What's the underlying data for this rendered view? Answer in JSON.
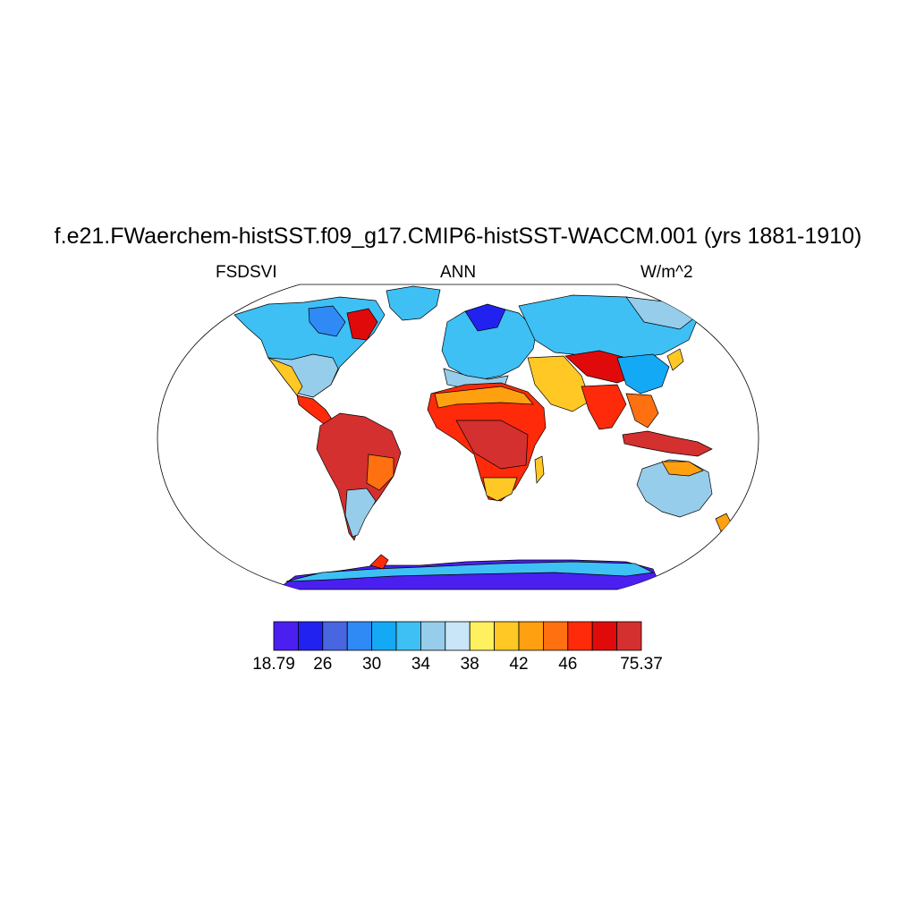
{
  "title": "f.e21.FWaerchem-histSST.f09_g17.CMIP6-histSST-WACCM.001 (yrs 1881-1910)",
  "left_label": "FSDSVI",
  "center_label": "ANN",
  "right_label": "W/m^2",
  "colorbar": {
    "colors": [
      "#4a1ff0",
      "#2222f0",
      "#4766e0",
      "#2f8af5",
      "#14a9f5",
      "#3ec0f5",
      "#96cdea",
      "#c8e6f8",
      "#fff060",
      "#ffc825",
      "#ffa010",
      "#ff7010",
      "#ff2a0a",
      "#e00a0a",
      "#d43030"
    ],
    "labels": [
      "18.79",
      "26",
      "30",
      "34",
      "38",
      "42",
      "46",
      "75.37"
    ],
    "label_boxes": [
      0,
      2,
      4,
      6,
      8,
      10,
      12,
      15
    ]
  },
  "colors": {
    "ocean": "#ffffff",
    "coast": "#000000"
  }
}
